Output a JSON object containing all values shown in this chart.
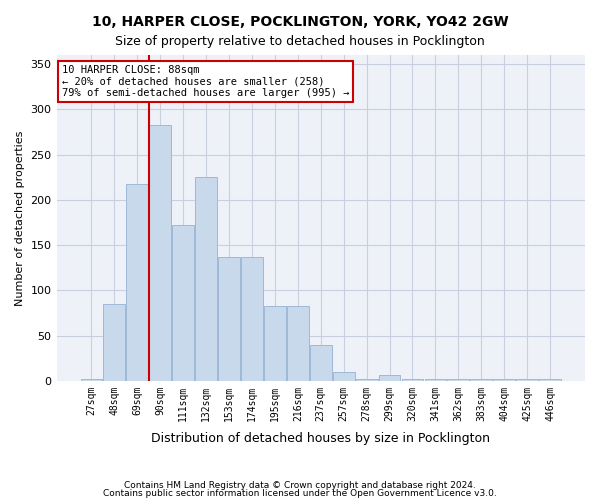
{
  "title1": "10, HARPER CLOSE, POCKLINGTON, YORK, YO42 2GW",
  "title2": "Size of property relative to detached houses in Pocklington",
  "xlabel": "Distribution of detached houses by size in Pocklington",
  "ylabel": "Number of detached properties",
  "footer1": "Contains HM Land Registry data © Crown copyright and database right 2024.",
  "footer2": "Contains public sector information licensed under the Open Government Licence v3.0.",
  "annotation_line1": "10 HARPER CLOSE: 88sqm",
  "annotation_line2": "← 20% of detached houses are smaller (258)",
  "annotation_line3": "79% of semi-detached houses are larger (995) →",
  "property_sqm": 88,
  "bar_categories": [
    "27sqm",
    "48sqm",
    "69sqm",
    "90sqm",
    "111sqm",
    "132sqm",
    "153sqm",
    "174sqm",
    "195sqm",
    "216sqm",
    "237sqm",
    "257sqm",
    "278sqm",
    "299sqm",
    "320sqm",
    "341sqm",
    "362sqm",
    "383sqm",
    "404sqm",
    "425sqm",
    "446sqm"
  ],
  "bar_values": [
    2,
    85,
    217,
    283,
    172,
    225,
    137,
    137,
    83,
    83,
    39,
    10,
    2,
    6,
    2,
    2,
    2,
    2,
    2,
    2,
    2
  ],
  "bar_color": "#c9d9ec",
  "bar_edge_color": "#a0b8d8",
  "vline_x": 3,
  "vline_color": "#cc0000",
  "ylim": [
    0,
    360
  ],
  "yticks": [
    0,
    50,
    100,
    150,
    200,
    250,
    300,
    350
  ],
  "background_color": "#ffffff",
  "grid_color": "#c8d0e0",
  "annotation_box_color": "#ffffff",
  "annotation_box_edge": "#cc0000"
}
